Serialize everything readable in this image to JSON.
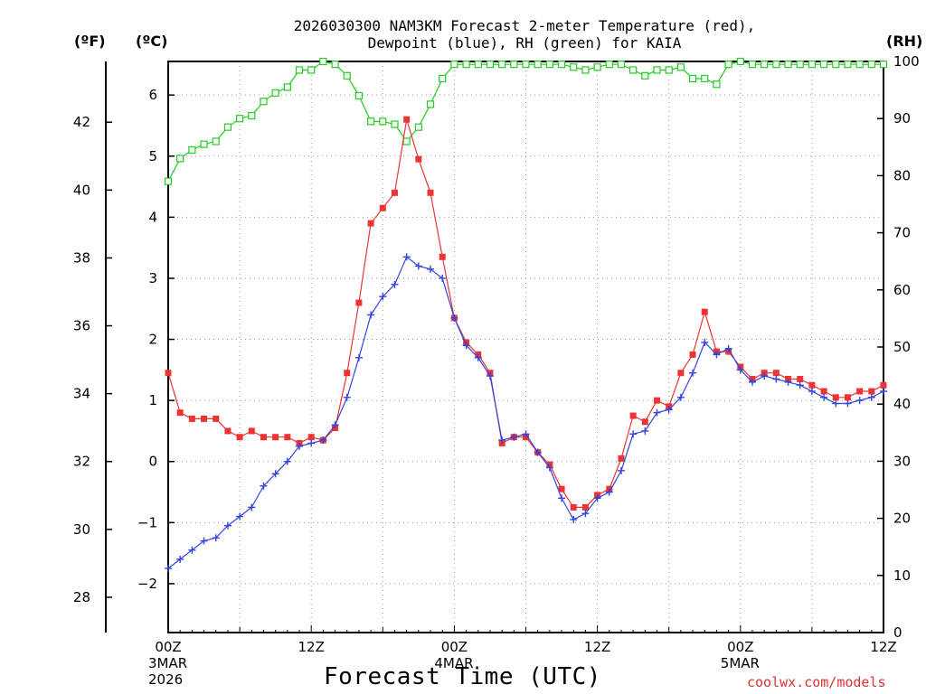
{
  "title_line1": "2026030300 NAM3KM Forecast 2-meter Temperature (red),",
  "title_line2": "Dewpoint (blue), RH (green) for KAIA",
  "unit_f": "(ºF)",
  "unit_c": "(ºC)",
  "unit_rh": "(RH)",
  "credit": "coolwx.com/models",
  "colors": {
    "temperature": "#ee3333",
    "dewpoint": "#3344dd",
    "rh": "#22cc22"
  },
  "chart_data": {
    "type": "line",
    "title": "2026030300 NAM3KM Forecast 2-meter Temperature (red), Dewpoint (blue), RH (green) for KAIA",
    "xlabel": "Forecast Time (UTC)",
    "x_hours": [
      0,
      1,
      2,
      3,
      4,
      5,
      6,
      7,
      8,
      9,
      10,
      11,
      12,
      13,
      14,
      15,
      16,
      17,
      18,
      19,
      20,
      21,
      22,
      23,
      24,
      25,
      26,
      27,
      28,
      29,
      30,
      31,
      32,
      33,
      34,
      35,
      36,
      37,
      38,
      39,
      40,
      41,
      42,
      43,
      44,
      45,
      46,
      47,
      48,
      49,
      50,
      51,
      52,
      53,
      54,
      55,
      56,
      57,
      58,
      59,
      60
    ],
    "x_ticks": [
      {
        "hour": 0,
        "label": "00Z",
        "date": "3MAR",
        "year": "2026"
      },
      {
        "hour": 12,
        "label": "12Z"
      },
      {
        "hour": 24,
        "label": "00Z",
        "date": "4MAR"
      },
      {
        "hour": 36,
        "label": "12Z"
      },
      {
        "hour": 48,
        "label": "00Z",
        "date": "5MAR"
      },
      {
        "hour": 60,
        "label": "12Z"
      }
    ],
    "y_left_c": {
      "range": [
        -2.8,
        6.55
      ],
      "ticks": [
        -2,
        -1,
        0,
        1,
        2,
        3,
        4,
        5,
        6
      ],
      "label": "(ºC)"
    },
    "y_left_f": {
      "ticks": [
        28,
        30,
        32,
        34,
        36,
        38,
        40,
        42
      ],
      "label": "(ºF)"
    },
    "y_right_rh": {
      "range": [
        0,
        100
      ],
      "ticks": [
        0,
        10,
        20,
        30,
        40,
        50,
        60,
        70,
        80,
        90,
        100
      ],
      "label": "(RH)"
    },
    "series": [
      {
        "name": "Temperature",
        "unit": "C",
        "color": "red",
        "marker": "square",
        "values": [
          1.45,
          0.8,
          0.7,
          0.7,
          0.7,
          0.5,
          0.4,
          0.5,
          0.4,
          0.4,
          0.4,
          0.3,
          0.4,
          0.35,
          0.55,
          1.45,
          2.6,
          3.9,
          4.15,
          4.4,
          5.6,
          4.95,
          4.4,
          3.35,
          2.35,
          1.95,
          1.75,
          1.45,
          0.3,
          0.4,
          0.4,
          0.15,
          -0.05,
          -0.45,
          -0.75,
          -0.75,
          -0.55,
          -0.45,
          0.05,
          0.75,
          0.65,
          1.0,
          0.9,
          1.45,
          1.75,
          2.45,
          1.8,
          1.8,
          1.55,
          1.35,
          1.45,
          1.45,
          1.35,
          1.35,
          1.25,
          1.15,
          1.05,
          1.05,
          1.15,
          1.15,
          1.25
        ]
      },
      {
        "name": "Dewpoint",
        "unit": "C",
        "color": "blue",
        "marker": "plus",
        "values": [
          -1.75,
          -1.6,
          -1.45,
          -1.3,
          -1.25,
          -1.05,
          -0.9,
          -0.75,
          -0.4,
          -0.2,
          0.0,
          0.25,
          0.3,
          0.35,
          0.6,
          1.05,
          1.7,
          2.4,
          2.7,
          2.9,
          3.35,
          3.2,
          3.15,
          3.0,
          2.35,
          1.9,
          1.7,
          1.4,
          0.35,
          0.4,
          0.45,
          0.15,
          -0.1,
          -0.6,
          -0.95,
          -0.85,
          -0.6,
          -0.5,
          -0.15,
          0.45,
          0.5,
          0.8,
          0.85,
          1.05,
          1.45,
          1.95,
          1.75,
          1.85,
          1.5,
          1.3,
          1.4,
          1.35,
          1.3,
          1.25,
          1.15,
          1.05,
          0.95,
          0.95,
          1.0,
          1.05,
          1.15
        ]
      },
      {
        "name": "RH",
        "unit": "%",
        "color": "green",
        "marker": "open-square",
        "values": [
          79,
          83,
          84.5,
          85.5,
          86,
          88.5,
          90,
          90.5,
          93,
          94.5,
          95.5,
          98.5,
          98.5,
          100,
          99.5,
          97.5,
          94,
          89.5,
          89.5,
          89,
          86,
          88.5,
          92.5,
          97,
          99.5,
          99.5,
          99.5,
          99.5,
          99.5,
          99.5,
          99.5,
          99.5,
          99.5,
          99.5,
          99,
          98.5,
          99,
          99.5,
          99.5,
          98.5,
          97.5,
          98.5,
          98.5,
          99,
          97,
          97,
          96,
          99.5,
          100,
          99.5,
          99.5,
          99.5,
          99.5,
          99.5,
          99.5,
          99.5,
          99.5,
          99.5,
          99.5,
          99.5,
          99.5
        ]
      }
    ]
  }
}
